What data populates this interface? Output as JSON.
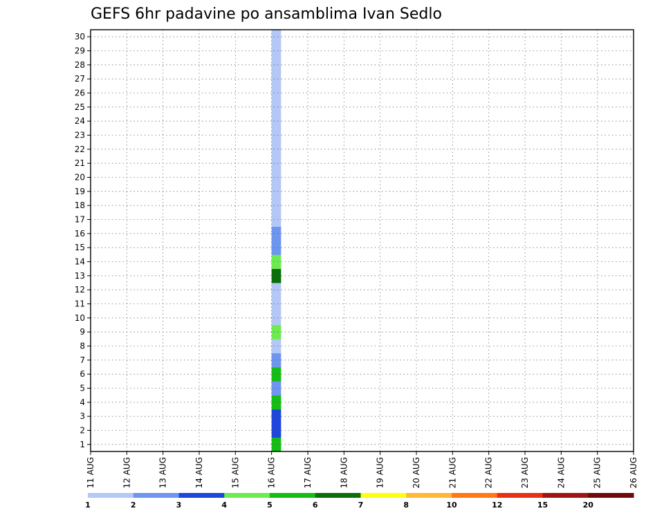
{
  "chart_data": {
    "type": "heatmap",
    "title": "GEFS 6hr padavine po ansamblima Ivan Sedlo",
    "xlabel": "",
    "ylabel": "",
    "x_tick_labels": [
      "11 AUG",
      "12 AUG",
      "13 AUG",
      "14 AUG",
      "15 AUG",
      "16 AUG",
      "17 AUG",
      "18 AUG",
      "19 AUG",
      "20 AUG",
      "21 AUG",
      "22 AUG",
      "23 AUG",
      "24 AUG",
      "25 AUG",
      "26 AUG"
    ],
    "y_tick_labels": [
      "1",
      "2",
      "3",
      "4",
      "5",
      "6",
      "7",
      "8",
      "9",
      "10",
      "11",
      "12",
      "13",
      "14",
      "15",
      "16",
      "17",
      "18",
      "19",
      "20",
      "21",
      "22",
      "23",
      "24",
      "25",
      "26",
      "27",
      "28",
      "29",
      "30"
    ],
    "xlim_days": [
      0,
      15
    ],
    "ylim": [
      0.5,
      30.5
    ],
    "grid": true,
    "colorbar": {
      "placement": "bottom",
      "bins": [
        {
          "color": "#b4c8f5"
        },
        {
          "color": "#6e96f0"
        },
        {
          "color": "#1e46dc"
        },
        {
          "color": "#6eeb50"
        },
        {
          "color": "#14be14"
        },
        {
          "color": "#0a6e0a"
        },
        {
          "color": "#ffff14"
        },
        {
          "color": "#ffb932"
        },
        {
          "color": "#ff7814"
        },
        {
          "color": "#e63214"
        },
        {
          "color": "#a01414"
        },
        {
          "color": "#6e0a0a"
        }
      ],
      "labels": [
        {
          "text": "1",
          "at": 0
        },
        {
          "text": "2",
          "at": 1
        },
        {
          "text": "3",
          "at": 2
        },
        {
          "text": "4",
          "at": 3
        },
        {
          "text": "5",
          "at": 4
        },
        {
          "text": "6",
          "at": 5
        },
        {
          "text": "7",
          "at": 6
        },
        {
          "text": "8",
          "at": 7
        },
        {
          "text": "10",
          "at": 8
        },
        {
          "text": "12",
          "at": 9
        },
        {
          "text": "15",
          "at": 10
        },
        {
          "text": "20",
          "at": 11
        }
      ]
    },
    "cells": [
      {
        "x": 5.0,
        "y": 1,
        "c": 4
      },
      {
        "x": 5.0,
        "y": 2,
        "c": 2
      },
      {
        "x": 5.0,
        "y": 3,
        "c": 2
      },
      {
        "x": 5.0,
        "y": 4,
        "c": 4
      },
      {
        "x": 5.0,
        "y": 5,
        "c": 1
      },
      {
        "x": 5.0,
        "y": 6,
        "c": 4
      },
      {
        "x": 5.0,
        "y": 7,
        "c": 1
      },
      {
        "x": 5.0,
        "y": 8,
        "c": 0
      },
      {
        "x": 5.0,
        "y": 9,
        "c": 3
      },
      {
        "x": 5.0,
        "y": 10,
        "c": 0
      },
      {
        "x": 5.0,
        "y": 11,
        "c": 0
      },
      {
        "x": 5.0,
        "y": 12,
        "c": 0
      },
      {
        "x": 5.0,
        "y": 13,
        "c": 5
      },
      {
        "x": 5.0,
        "y": 14,
        "c": 3
      },
      {
        "x": 5.0,
        "y": 15,
        "c": 1
      },
      {
        "x": 5.0,
        "y": 16,
        "c": 1
      },
      {
        "x": 5.0,
        "y": 17,
        "c": 0
      },
      {
        "x": 5.0,
        "y": 18,
        "c": 0
      },
      {
        "x": 5.0,
        "y": 19,
        "c": 0
      },
      {
        "x": 5.0,
        "y": 20,
        "c": 0
      },
      {
        "x": 5.0,
        "y": 21,
        "c": 0
      },
      {
        "x": 5.0,
        "y": 22,
        "c": 0
      },
      {
        "x": 5.0,
        "y": 23,
        "c": 0
      },
      {
        "x": 5.0,
        "y": 24,
        "c": 0
      },
      {
        "x": 5.0,
        "y": 25,
        "c": 0
      },
      {
        "x": 5.0,
        "y": 26,
        "c": 0
      },
      {
        "x": 5.0,
        "y": 27,
        "c": 0
      },
      {
        "x": 5.0,
        "y": 28,
        "c": 0
      },
      {
        "x": 5.0,
        "y": 29,
        "c": 0
      },
      {
        "x": 5.0,
        "y": 30,
        "c": 0
      }
    ]
  }
}
